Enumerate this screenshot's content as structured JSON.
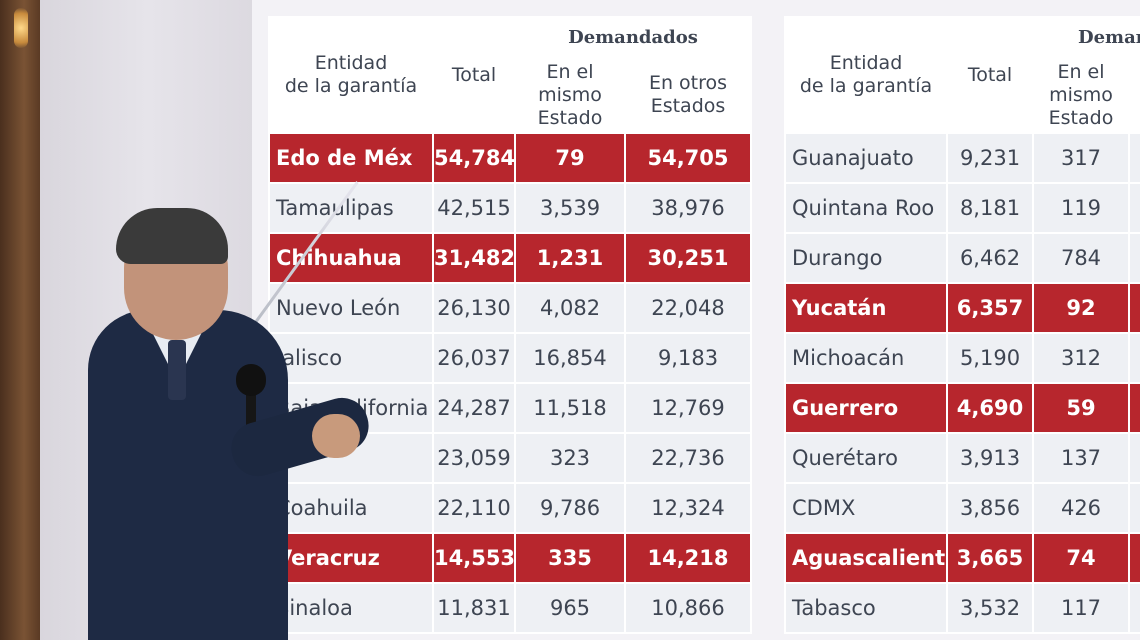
{
  "left_table": {
    "headers": {
      "entity": "Entidad de la garantía",
      "total": "Total",
      "group": "Demandados",
      "same": "En el mismo Estado",
      "other": "En otros Estados"
    },
    "rows": [
      {
        "name": "Edo de Méx",
        "total": "54,784",
        "same": "79",
        "other": "54,705",
        "highlight": true
      },
      {
        "name": "Tamaulipas",
        "total": "42,515",
        "same": "3,539",
        "other": "38,976",
        "highlight": false
      },
      {
        "name": "Chihuahua",
        "total": "31,482",
        "same": "1,231",
        "other": "30,251",
        "highlight": true
      },
      {
        "name": "Nuevo León",
        "total": "26,130",
        "same": "4,082",
        "other": "22,048",
        "highlight": false
      },
      {
        "name": "Jalisco",
        "total": "26,037",
        "same": "16,854",
        "other": "9,183",
        "highlight": false
      },
      {
        "name": "Baja California",
        "total": "24,287",
        "same": "11,518",
        "other": "12,769",
        "highlight": false
      },
      {
        "name": "",
        "total": "23,059",
        "same": "323",
        "other": "22,736",
        "highlight": false
      },
      {
        "name": "Coahuila",
        "total": "22,110",
        "same": "9,786",
        "other": "12,324",
        "highlight": false
      },
      {
        "name": "Veracruz",
        "total": "14,553",
        "same": "335",
        "other": "14,218",
        "highlight": true
      },
      {
        "name": "Sinaloa",
        "total": "11,831",
        "same": "965",
        "other": "10,866",
        "highlight": false
      }
    ]
  },
  "right_table": {
    "headers": {
      "entity": "Entidad de la garantía",
      "total": "Total",
      "group": "Demar",
      "same": "En el mismo Estado"
    },
    "rows": [
      {
        "name": "Guanajuato",
        "total": "9,231",
        "same": "317",
        "highlight": false
      },
      {
        "name": "Quintana Roo",
        "total": "8,181",
        "same": "119",
        "highlight": false
      },
      {
        "name": "Durango",
        "total": "6,462",
        "same": "784",
        "highlight": false
      },
      {
        "name": "Yucatán",
        "total": "6,357",
        "same": "92",
        "highlight": true
      },
      {
        "name": "Michoacán",
        "total": "5,190",
        "same": "312",
        "highlight": false
      },
      {
        "name": "Guerrero",
        "total": "4,690",
        "same": "59",
        "highlight": true
      },
      {
        "name": "Querétaro",
        "total": "3,913",
        "same": "137",
        "highlight": false
      },
      {
        "name": "CDMX",
        "total": "3,856",
        "same": "426",
        "highlight": false
      },
      {
        "name": "Aguascalientes",
        "total": "3,665",
        "same": "74",
        "highlight": true
      },
      {
        "name": "Tabasco",
        "total": "3,532",
        "same": "117",
        "highlight": false
      }
    ]
  },
  "colors": {
    "highlight_row": "#b7262d",
    "cell_bg": "#eef0f4",
    "text": "#3e4552"
  }
}
